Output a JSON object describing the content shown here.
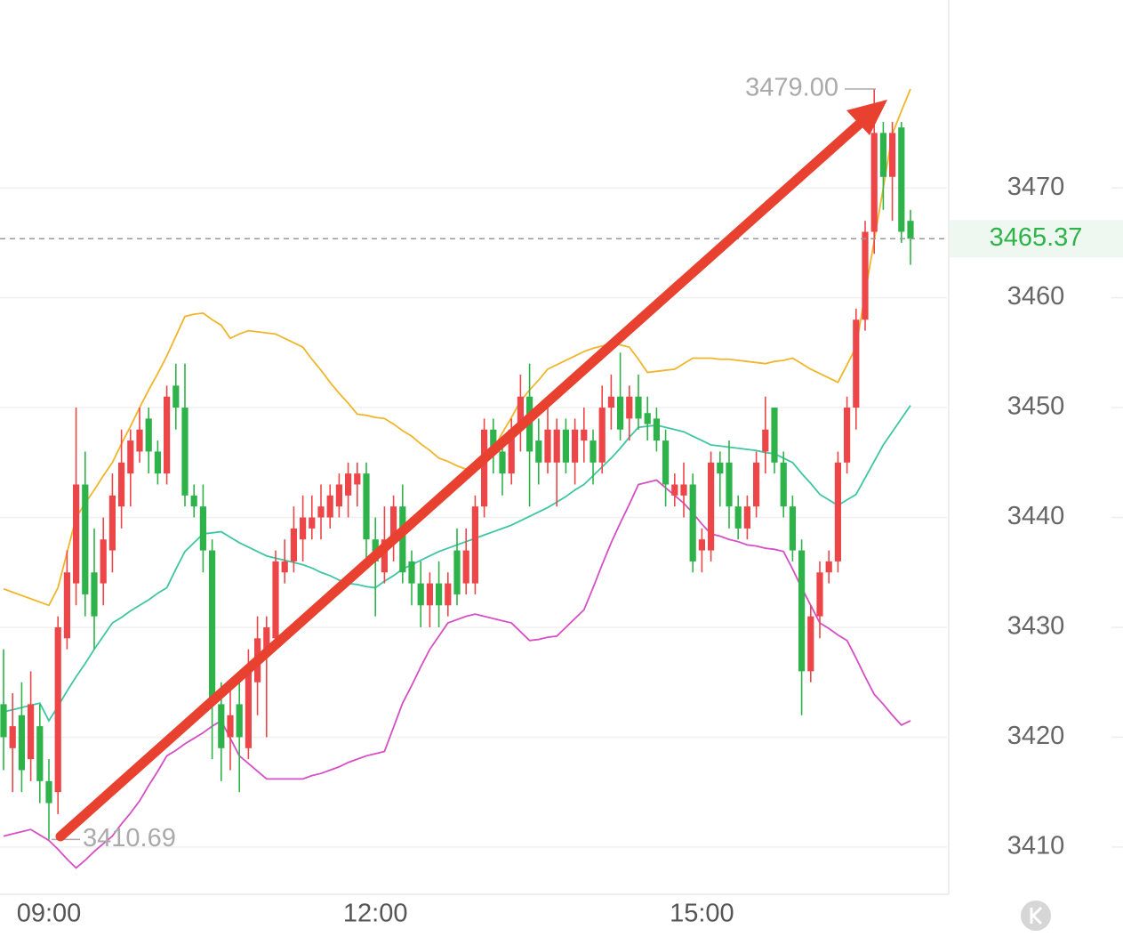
{
  "chart_data": {
    "type": "candlestick",
    "categories": [
      null,
      null,
      null,
      null,
      null,
      "09:00",
      null,
      null,
      null,
      null,
      null,
      null,
      null,
      null,
      null,
      null,
      null,
      null,
      null,
      null,
      null,
      null,
      null,
      null,
      null,
      null,
      null,
      null,
      null,
      null,
      null,
      null,
      null,
      null,
      null,
      null,
      null,
      null,
      null,
      null,
      null,
      "12:00",
      null,
      null,
      null,
      null,
      null,
      null,
      null,
      null,
      null,
      null,
      null,
      null,
      null,
      null,
      null,
      null,
      null,
      null,
      null,
      null,
      null,
      null,
      null,
      null,
      null,
      null,
      null,
      null,
      null,
      null,
      null,
      null,
      null,
      null,
      null,
      "15:00",
      null,
      null,
      null,
      null,
      null,
      null,
      null,
      null,
      null,
      null,
      null,
      null,
      null,
      null,
      null,
      null,
      null,
      null,
      null,
      null,
      null,
      null,
      null
    ],
    "open": [
      3423,
      3419,
      3422,
      3418,
      3421,
      3416,
      3415,
      3429,
      3434,
      3443,
      3435,
      3434,
      3437,
      3441,
      3444,
      3446,
      3449,
      3446,
      3444,
      3452,
      3450,
      3442,
      3441,
      3437,
      3423,
      3420,
      3423,
      3419,
      3425,
      3428,
      3429,
      3435,
      3436,
      3438,
      3439,
      3440,
      3440,
      3441,
      3442,
      3443,
      3444,
      3438,
      3435,
      3438,
      3441,
      3436,
      3434,
      3432,
      3434,
      3432,
      3437,
      3434,
      3434,
      3441,
      3448,
      3446,
      3444,
      3448,
      3451,
      3447,
      3445,
      3445,
      3448,
      3445,
      3447,
      3447,
      3445,
      3450,
      3451,
      3449,
      3451,
      3449.5,
      3449,
      3447,
      3442,
      3442,
      3443,
      3437,
      3437,
      3445,
      3445,
      3441,
      3439,
      3441,
      3446,
      3450,
      3445,
      3441,
      3437,
      3426,
      3431,
      3435,
      3436,
      3445,
      3450,
      3458,
      3466,
      3475,
      3471,
      3475.5,
      3467
    ],
    "high": [
      3428,
      3424,
      3425,
      3426,
      3423,
      3418,
      3431,
      3437,
      3450,
      3446,
      3439,
      3440,
      3444,
      3448,
      3448,
      3450,
      3450,
      3447,
      3452,
      3454,
      3454,
      3443,
      3443,
      3438,
      3425,
      3425,
      3425,
      3428,
      3431,
      3431,
      3437,
      3438,
      3441,
      3442,
      3442,
      3443,
      3443,
      3444,
      3445,
      3445,
      3445,
      3440,
      3441,
      3442,
      3443,
      3437,
      3436,
      3435,
      3436,
      3435,
      3439,
      3439,
      3442,
      3449,
      3449,
      3447,
      3449,
      3453,
      3454,
      3449,
      3450,
      3449,
      3449,
      3449,
      3450,
      3448,
      3452,
      3453,
      3455,
      3452,
      3453,
      3451,
      3450,
      3448,
      3444,
      3445,
      3444,
      3439,
      3446,
      3446,
      3447,
      3442,
      3442,
      3446,
      3451,
      3450,
      3446,
      3442,
      3438,
      3432,
      3436,
      3437,
      3446,
      3451,
      3459,
      3467,
      3479,
      3476,
      3476,
      3476,
      3468
    ],
    "low": [
      3417,
      3415,
      3415,
      3416,
      3414,
      3410.69,
      3413,
      3428,
      3432,
      3431,
      3428,
      3432,
      3435,
      3439,
      3441,
      3445,
      3444,
      3443,
      3443,
      3448,
      3441,
      3440,
      3435,
      3418,
      3416,
      3417,
      3415,
      3418,
      3422,
      3420,
      3428,
      3434,
      3435,
      3436,
      3438,
      3438,
      3439,
      3440,
      3440,
      3441,
      3436,
      3431,
      3434,
      3436,
      3434,
      3432,
      3430,
      3430,
      3430,
      3431,
      3432,
      3433,
      3433,
      3440,
      3444,
      3442,
      3443,
      3446,
      3441,
      3443,
      3444,
      3441,
      3444,
      3443,
      3445,
      3443,
      3444,
      3448,
      3447,
      3447,
      3448,
      3447,
      3446,
      3441,
      3441,
      3440,
      3435,
      3435,
      3436,
      3441,
      3439,
      3438,
      3438,
      3440,
      3444,
      3444,
      3440,
      3436,
      3422,
      3425,
      3429,
      3434,
      3435,
      3444,
      3448,
      3457,
      3464,
      3468,
      3467,
      3465,
      3463
    ],
    "close": [
      3420,
      3421,
      3417,
      3423,
      3416,
      3414,
      3430,
      3435,
      3443,
      3433,
      3431,
      3438,
      3442,
      3445,
      3447,
      3448,
      3446,
      3444,
      3451,
      3450,
      3442,
      3441,
      3437,
      3423,
      3419,
      3422,
      3420,
      3426,
      3429,
      3430,
      3436,
      3436,
      3439,
      3440,
      3440,
      3441,
      3442,
      3443,
      3444,
      3444,
      3438,
      3436,
      3438,
      3441,
      3435,
      3434,
      3432,
      3434,
      3432,
      3434,
      3433,
      3437,
      3441,
      3448,
      3446,
      3444,
      3448,
      3451,
      3446,
      3445,
      3448,
      3448,
      3445,
      3448,
      3448,
      3445,
      3450,
      3451,
      3448,
      3451,
      3449,
      3448.5,
      3447,
      3443,
      3443,
      3443,
      3436,
      3438,
      3445,
      3444,
      3441,
      3439,
      3441,
      3445,
      3448,
      3445,
      3441,
      3437,
      3426,
      3431,
      3435,
      3436,
      3445,
      3450,
      3458,
      3466,
      3475,
      3471,
      3475,
      3466,
      3465.37
    ],
    "up_color": "#ec4649",
    "down_color": "#2eb34a",
    "bands": [
      {
        "color": "#f0b52a",
        "values": [
          3433.5,
          3433.2,
          3432.9,
          3432.6,
          3432.3,
          3432,
          3433.6,
          3436.8,
          3440,
          3441.3,
          3442.5,
          3443.8,
          3445,
          3446.7,
          3448.3,
          3450,
          3451.6,
          3453.1,
          3454.7,
          3456.5,
          3458.3,
          3458.5,
          3458.6,
          3458,
          3457.5,
          3456.3,
          3456.7,
          3457,
          3456.9,
          3456.8,
          3456.7,
          3456.3,
          3455.9,
          3455.5,
          3454.4,
          3453.4,
          3452.3,
          3451.3,
          3450.4,
          3449.4,
          3449.3,
          3449.1,
          3449,
          3448.5,
          3447.9,
          3447.4,
          3446.7,
          3446.1,
          3445.4,
          3445.1,
          3444.7,
          3444.4,
          3445,
          3445.6,
          3446.2,
          3447.7,
          3449.1,
          3450.6,
          3451.6,
          3452.5,
          3453.5,
          3453.9,
          3454.3,
          3454.7,
          3455.1,
          3455.4,
          3455.6,
          3455.9,
          3455.7,
          3455.5,
          3454.4,
          3453.2,
          3453.3,
          3453.4,
          3453.5,
          3454,
          3454.5,
          3454.5,
          3454.5,
          3454.4,
          3454.4,
          3454.3,
          3454.2,
          3454.1,
          3454,
          3454.2,
          3454.3,
          3454.5,
          3454,
          3453.5,
          3453.1,
          3452.7,
          3452.3,
          3453.9,
          3455.5,
          3460.4,
          3465.2,
          3470,
          3474.9,
          3477,
          3479
        ]
      },
      {
        "color": "#3ec6a2",
        "values": [
          3422.3,
          3422.5,
          3422.7,
          3422.9,
          3423.1,
          3421.5,
          3422.8,
          3424.2,
          3425.5,
          3426.7,
          3428,
          3429.2,
          3430.4,
          3430.9,
          3431.5,
          3432,
          3432.5,
          3433.1,
          3433.6,
          3435.3,
          3436.9,
          3437.7,
          3438.5,
          3438.6,
          3438.7,
          3438.2,
          3437.7,
          3437.3,
          3436.9,
          3436.5,
          3436.3,
          3436.1,
          3435.9,
          3435.7,
          3435.4,
          3435,
          3434.7,
          3434.3,
          3434,
          3433.9,
          3433.7,
          3433.6,
          3434.2,
          3434.7,
          3435.3,
          3435.7,
          3436.1,
          3436.5,
          3436.9,
          3437.2,
          3437.5,
          3437.8,
          3438.1,
          3438.4,
          3438.7,
          3439,
          3439.3,
          3439.7,
          3440.1,
          3440.5,
          3440.9,
          3441.4,
          3441.9,
          3442.5,
          3443,
          3443.8,
          3444.6,
          3445.4,
          3446.3,
          3447.3,
          3448.2,
          3448.3,
          3448.4,
          3448.2,
          3448,
          3447.8,
          3447.4,
          3447,
          3446.6,
          3446.5,
          3446.4,
          3446.3,
          3446.2,
          3446.1,
          3445.9,
          3445.8,
          3445.4,
          3445,
          3444,
          3443.1,
          3442.1,
          3441.6,
          3441.1,
          3441.6,
          3442.1,
          3443.6,
          3445.1,
          3446.6,
          3447.8,
          3449,
          3450.2
        ]
      },
      {
        "color": "#d64fc4",
        "values": [
          3411,
          3411.2,
          3411.4,
          3411.6,
          3411.1,
          3410.6,
          3409.8,
          3408.9,
          3408.1,
          3408.8,
          3409.6,
          3410.3,
          3411,
          3412.1,
          3413.1,
          3414.2,
          3415.6,
          3416.9,
          3418.3,
          3418.8,
          3419.4,
          3419.9,
          3420.4,
          3421,
          3421.5,
          3419.9,
          3418.3,
          3417.6,
          3416.9,
          3416.2,
          3416.2,
          3416.2,
          3416.2,
          3416.2,
          3416.5,
          3416.7,
          3417,
          3417.3,
          3417.7,
          3418,
          3418.3,
          3418.5,
          3418.7,
          3420.9,
          3423.1,
          3424.7,
          3426.4,
          3428,
          3429.2,
          3430.4,
          3430.7,
          3431,
          3431.2,
          3431,
          3430.8,
          3430.6,
          3430.4,
          3429.6,
          3428.8,
          3428.9,
          3429.1,
          3429.2,
          3430,
          3430.8,
          3431.6,
          3433.6,
          3435.7,
          3437.7,
          3439.5,
          3441.2,
          3443,
          3443.2,
          3443.4,
          3442.7,
          3442,
          3441.3,
          3440.4,
          3439.4,
          3438.5,
          3438.3,
          3438,
          3437.8,
          3437.5,
          3437.4,
          3437.2,
          3437.1,
          3436.9,
          3435.3,
          3433.6,
          3432,
          3430.4,
          3429.9,
          3429.3,
          3428.8,
          3427.2,
          3425.5,
          3423.9,
          3423,
          3422,
          3421.1,
          3421.5
        ]
      }
    ],
    "ylim": [
      3405.7,
      3487.1
    ],
    "yticks": [
      3410,
      3420,
      3430,
      3440,
      3450,
      3460,
      3470
    ],
    "grid": true,
    "high_label": {
      "value": 3479,
      "label": "3479.00"
    },
    "low_label": 3410.69,
    "last_price": 3465.37,
    "last_price_color": "#2eb34a"
  }
}
